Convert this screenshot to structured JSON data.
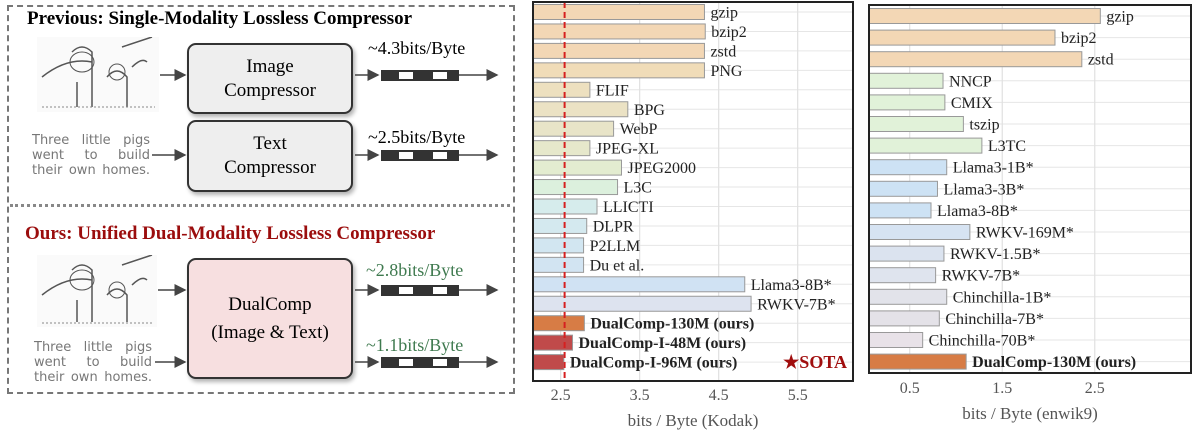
{
  "diagram": {
    "previous_title": "Previous:  Single-Modality Lossless Compressor",
    "image_compressor": [
      "Image",
      "Compressor"
    ],
    "text_compressor": [
      "Text",
      "Compressor"
    ],
    "prev_image_rate": "~4.3bits/Byte",
    "prev_text_rate": "~2.5bits/Byte",
    "sample_text": "Three little pigs went to build their own homes.",
    "ours_title": "Ours:  Unified Dual-Modality Lossless Compressor",
    "dualcomp_box": [
      "DualComp",
      "(Image & Text)"
    ],
    "ours_image_rate": "~2.8bits/Byte",
    "ours_text_rate": "~1.1bits/Byte",
    "colors": {
      "ours_title": "#9b0d0d",
      "ours_rate": "#3f7a4f",
      "dualcomp_box": "#f7dfe0",
      "prev_box": "#eeeeee"
    }
  },
  "chart_data": [
    {
      "type": "bar",
      "orientation": "horizontal",
      "xlabel": "bits / Byte  (Kodak)",
      "xlim": [
        2.15,
        6.2
      ],
      "xticks": [
        "2.5",
        "3.5",
        "4.5",
        "5.5"
      ],
      "grid": true,
      "reference_line": 2.55,
      "annotation": "★SOTA",
      "categories": [
        "gzip",
        "bzip2",
        "zstd",
        "PNG",
        "FLIF",
        "BPG",
        "WebP",
        "JPEG-XL",
        "JPEG2000",
        "L3C",
        "LLICTI",
        "DLPR",
        "P2LLM",
        "Du et al.",
        "Llama3-8B*",
        "RWKV-7B*",
        "DualComp-130M (ours)",
        "DualComp-I-48M (ours)",
        "DualComp-I-96M (ours)"
      ],
      "values": [
        4.32,
        4.33,
        4.32,
        4.32,
        2.87,
        3.35,
        3.17,
        2.87,
        3.27,
        3.22,
        2.96,
        2.83,
        2.79,
        2.79,
        4.83,
        4.91,
        2.8,
        2.65,
        2.54
      ],
      "colors": [
        "#f3d7b5",
        "#f3d7b5",
        "#f3d7b5",
        "#f0dcb8",
        "#ede0bf",
        "#ebe2c4",
        "#e8e4c8",
        "#e6e8cb",
        "#e3ecd0",
        "#dcf0dd",
        "#d6ecec",
        "#d4e9ef",
        "#d2e6f1",
        "#d2e4f2",
        "#d0e2f3",
        "#dde3ef",
        "#d77c45",
        "#c04a4a",
        "#c04a4a"
      ],
      "bold": [
        false,
        false,
        false,
        false,
        false,
        false,
        false,
        false,
        false,
        false,
        false,
        false,
        false,
        false,
        false,
        false,
        true,
        true,
        true
      ]
    },
    {
      "type": "bar",
      "orientation": "horizontal",
      "xlabel": "bits / Byte  (enwik9)",
      "xlim": [
        0.06,
        3.54
      ],
      "xticks": [
        "0.5",
        "1.5",
        "2.5"
      ],
      "grid": true,
      "categories": [
        "gzip",
        "bzip2",
        "zstd",
        "NNCP",
        "CMIX",
        "tszip",
        "L3TC",
        "Llama3-1B*",
        "Llama3-3B*",
        "Llama3-8B*",
        "RWKV-169M*",
        "RWKV-1.5B*",
        "RWKV-7B*",
        "Chinchilla-1B*",
        "Chinchilla-7B*",
        "Chinchilla-70B*",
        "DualComp-130M (ours)"
      ],
      "values": [
        2.56,
        2.07,
        2.36,
        0.86,
        0.88,
        1.08,
        1.28,
        0.9,
        0.8,
        0.73,
        1.15,
        0.87,
        0.78,
        0.9,
        0.82,
        0.64,
        1.11
      ],
      "colors": [
        "#f3d7b5",
        "#f3d7b5",
        "#f3d7b5",
        "#e1f2d9",
        "#e1f2d9",
        "#e1f2d9",
        "#e1f2d9",
        "#cde2f4",
        "#cde2f4",
        "#cde2f4",
        "#d6e3f2",
        "#dbe3ef",
        "#dfe4ee",
        "#e2e3ea",
        "#e4e2e8",
        "#e8e2e8",
        "#d77c45"
      ],
      "bold": [
        false,
        false,
        false,
        false,
        false,
        false,
        false,
        false,
        false,
        false,
        false,
        false,
        false,
        false,
        false,
        false,
        true
      ]
    }
  ]
}
